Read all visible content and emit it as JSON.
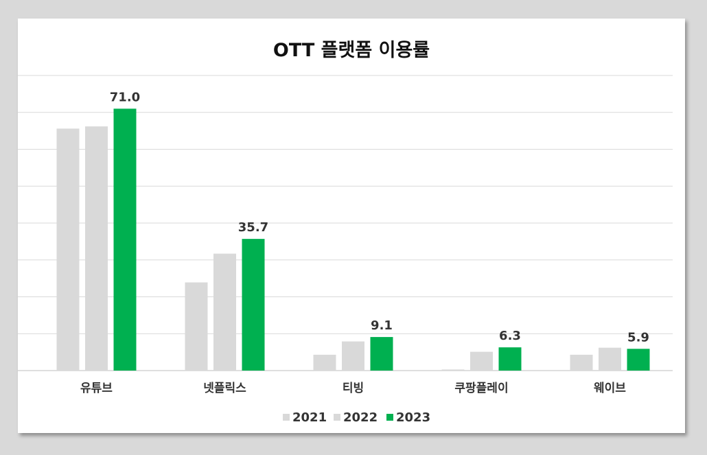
{
  "chart_data": {
    "type": "bar",
    "title": "OTT 플랫폼 이용률",
    "xlabel": "",
    "ylabel": "",
    "categories": [
      "유튜브",
      "넷플릭스",
      "티빙",
      "쿠팡플레이",
      "웨이브"
    ],
    "series": [
      {
        "name": "2021",
        "values": [
          65.6,
          23.9,
          4.3,
          0.3,
          4.3
        ],
        "color": "#d9d9d9"
      },
      {
        "name": "2022",
        "values": [
          66.2,
          31.7,
          7.9,
          5.1,
          6.2
        ],
        "color": "#d9d9d9"
      },
      {
        "name": "2023",
        "values": [
          71.0,
          35.7,
          9.1,
          6.3,
          5.9
        ],
        "color": "#00b050"
      }
    ],
    "data_labels": [
      "71.0",
      "35.7",
      "9.1",
      "6.3",
      "5.9"
    ],
    "ylim": [
      0,
      80
    ],
    "grid": true,
    "legend": "bottom"
  }
}
